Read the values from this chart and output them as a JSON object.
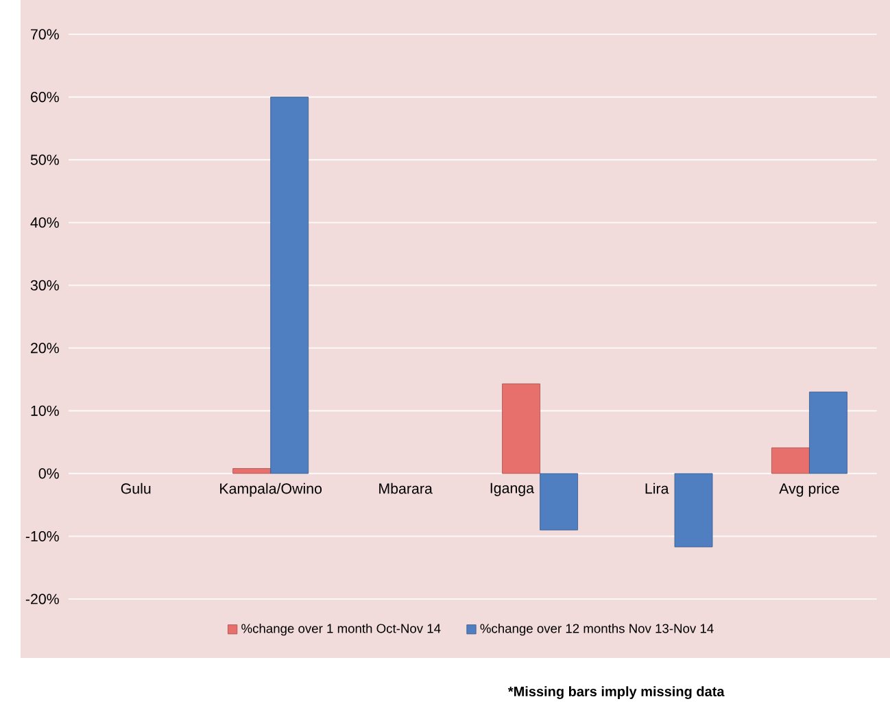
{
  "chart_data": {
    "type": "bar",
    "categories": [
      "Gulu",
      "Kampala/Owino",
      "Mbarara",
      "Iganga",
      "Lira",
      "Avg price"
    ],
    "series": [
      {
        "name": "%change over 1 month  Oct-Nov 14",
        "color": "#e8706c",
        "values": [
          null,
          0.8,
          null,
          14.3,
          null,
          4.1
        ]
      },
      {
        "name": "%change over 12 months  Nov 13-Nov 14",
        "color": "#4f7ec1",
        "values": [
          null,
          60,
          null,
          -9,
          -11.7,
          13
        ]
      }
    ],
    "ylim": [
      -20,
      70
    ],
    "yticks": [
      {
        "value": -20,
        "label": "-20%"
      },
      {
        "value": -10,
        "label": "-10%"
      },
      {
        "value": 0,
        "label": "0%"
      },
      {
        "value": 10,
        "label": "10%"
      },
      {
        "value": 20,
        "label": "20%"
      },
      {
        "value": 30,
        "label": "30%"
      },
      {
        "value": 40,
        "label": "40%"
      },
      {
        "value": 50,
        "label": "50%"
      },
      {
        "value": 60,
        "label": "60%"
      },
      {
        "value": 70,
        "label": "70%"
      }
    ],
    "grid": "y",
    "legend": "bottom",
    "annotations": [
      "*Missing bars imply missing data"
    ]
  }
}
